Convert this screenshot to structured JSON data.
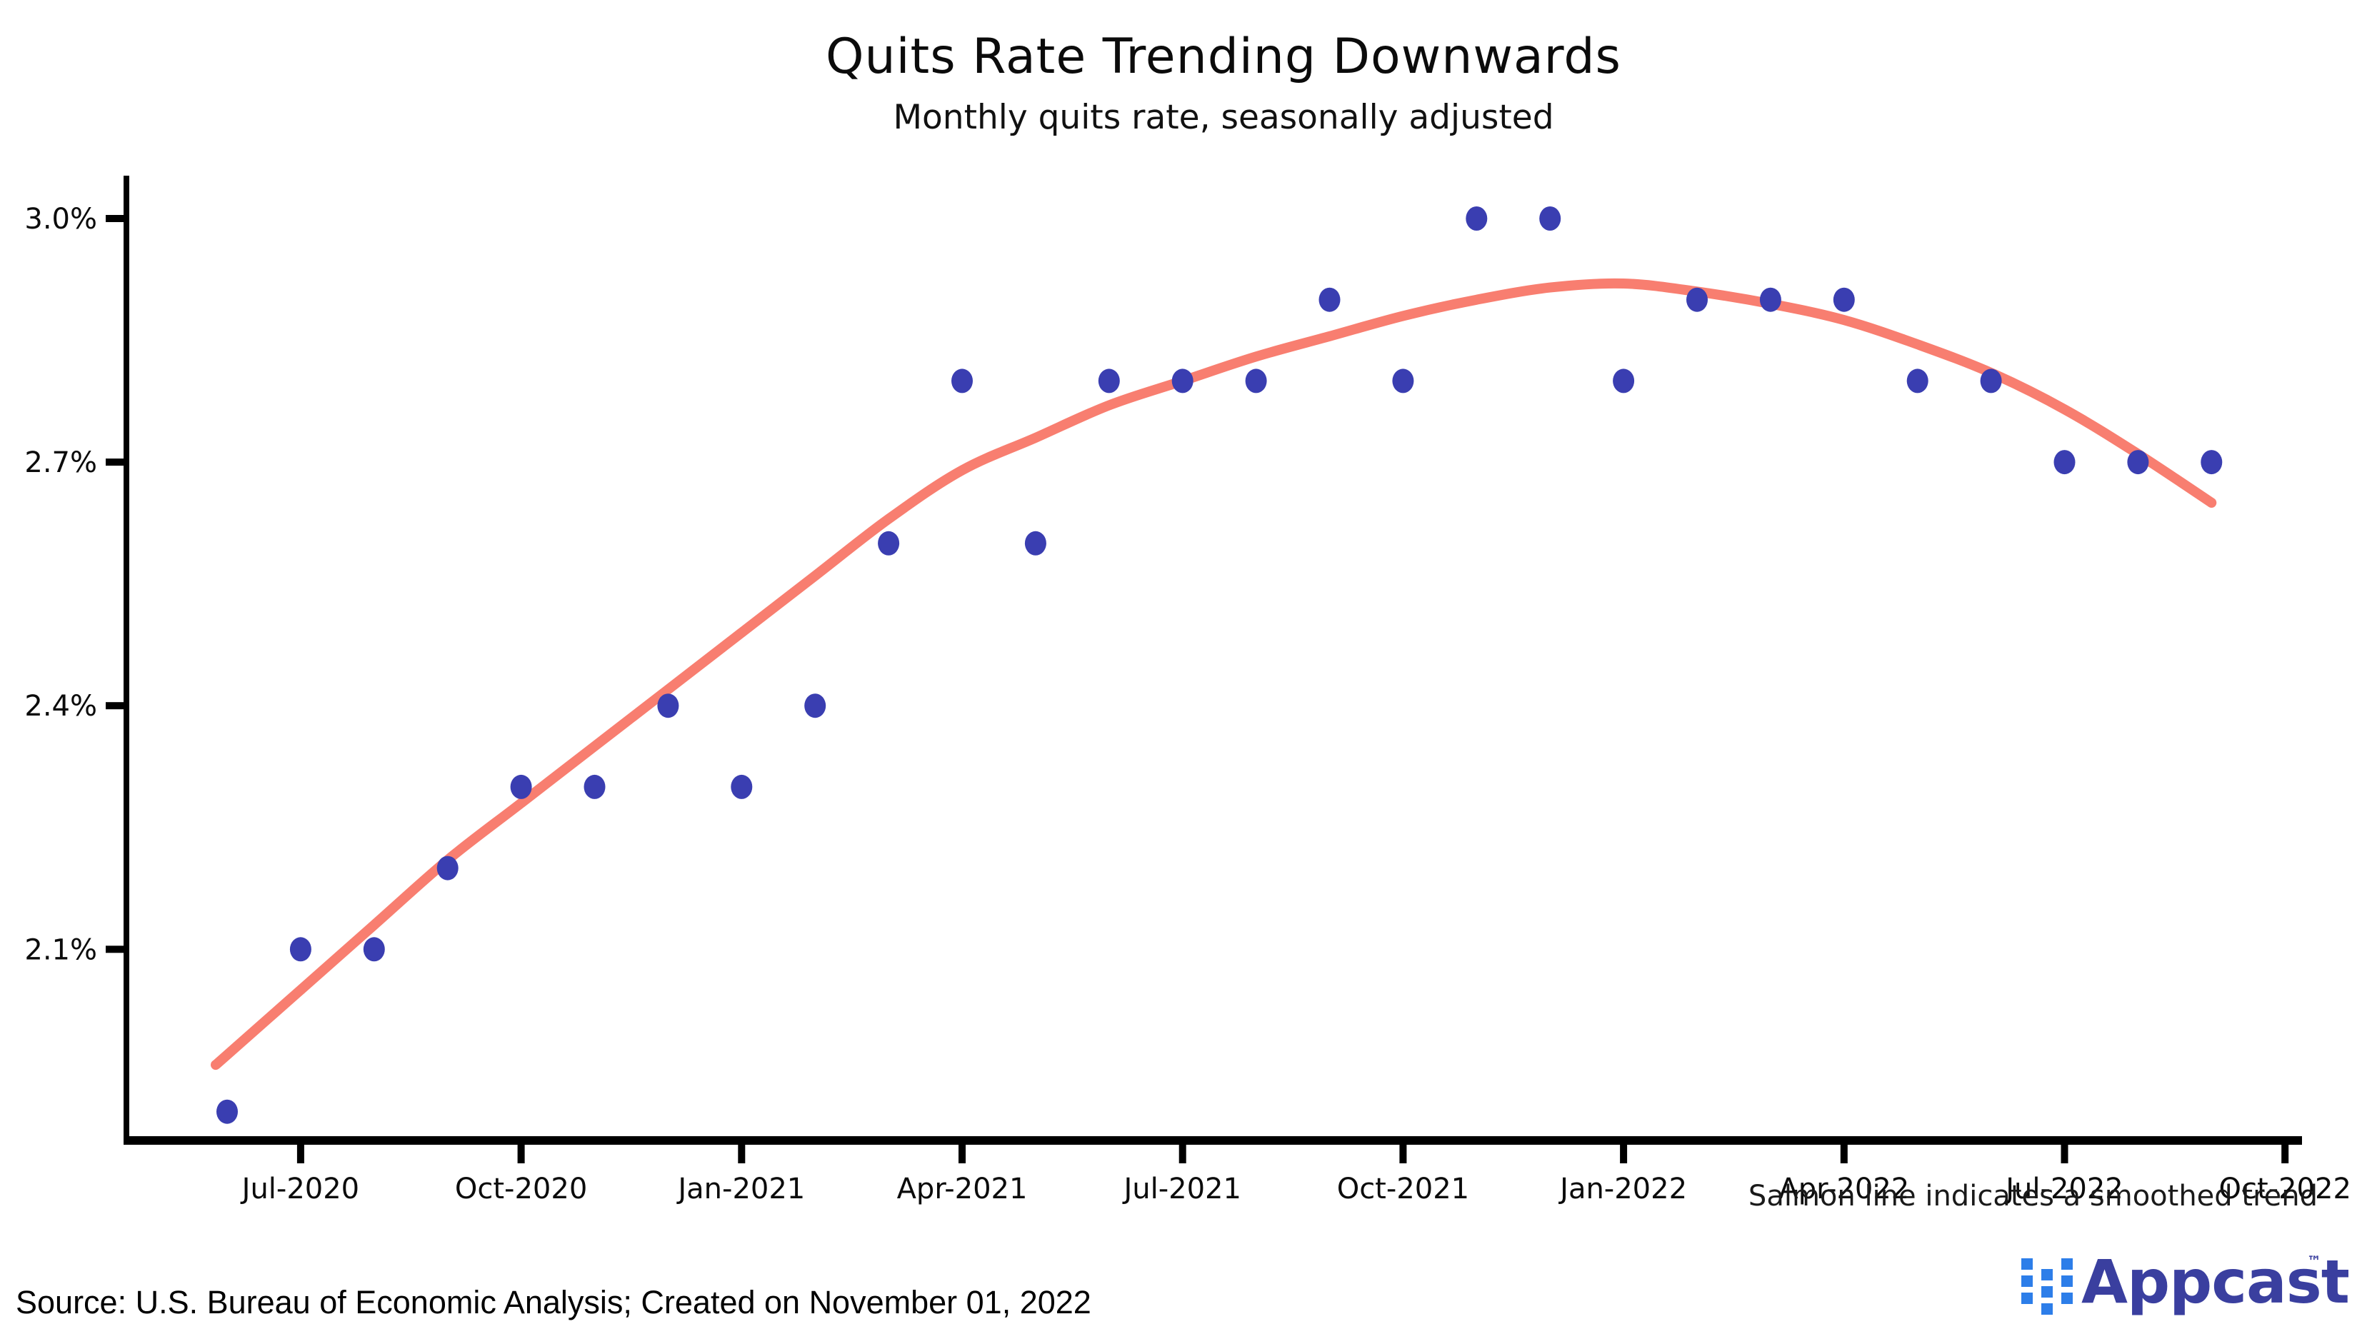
{
  "header": {
    "title": "Quits Rate Trending Downwards",
    "subtitle": "Monthly quits rate, seasonally adjusted"
  },
  "footnote": "Salmon line indicates a smoothed trend",
  "source_line": "Source: U.S. Bureau of Economic Analysis; Created on November 01, 2022",
  "logo": {
    "text": "Appcast",
    "tm": "™",
    "square_color": "#2d7ee9",
    "text_color": "#3a3f9f"
  },
  "chart_data": {
    "type": "scatter",
    "title": "Quits Rate Trending Downwards",
    "subtitle": "Monthly quits rate, seasonally adjusted",
    "xlabel": "",
    "ylabel": "",
    "grid": false,
    "legend_position": "none",
    "axis_color": "#000000",
    "ylim": [
      1.86,
      3.05
    ],
    "y_ticks": [
      3.0,
      2.7,
      2.4,
      2.1
    ],
    "y_tick_labels": [
      "3.0%",
      "2.7%",
      "2.4%",
      "2.1%"
    ],
    "x_tick_labels": [
      "Jul-2020",
      "Oct-2020",
      "Jan-2021",
      "Apr-2021",
      "Jul-2021",
      "Oct-2021",
      "Jan-2022",
      "Apr-2022",
      "Jul-2022",
      "Oct-2022"
    ],
    "x_tick_month_index": [
      1,
      4,
      7,
      10,
      13,
      16,
      19,
      22,
      25,
      28
    ],
    "x": [
      "Jun-2020",
      "Jul-2020",
      "Aug-2020",
      "Sep-2020",
      "Oct-2020",
      "Nov-2020",
      "Dec-2020",
      "Jan-2021",
      "Feb-2021",
      "Mar-2021",
      "Apr-2021",
      "May-2021",
      "Jun-2021",
      "Jul-2021",
      "Aug-2021",
      "Sep-2021",
      "Oct-2021",
      "Nov-2021",
      "Dec-2021",
      "Jan-2022",
      "Feb-2022",
      "Mar-2022",
      "Apr-2022",
      "May-2022",
      "Jun-2022",
      "Jul-2022",
      "Aug-2022",
      "Sep-2022"
    ],
    "series": [
      {
        "name": "Monthly quits rate (seasonally adjusted)",
        "render": "points",
        "color": "#3a3eb1",
        "values": [
          1.9,
          2.1,
          2.1,
          2.2,
          2.3,
          2.3,
          2.4,
          2.3,
          2.4,
          2.6,
          2.8,
          2.6,
          2.8,
          2.8,
          2.8,
          2.9,
          2.8,
          3.0,
          3.0,
          2.8,
          2.9,
          2.9,
          2.9,
          2.8,
          2.8,
          2.7,
          2.7,
          2.7
        ]
      },
      {
        "name": "Smoothed trend",
        "render": "line",
        "color": "#f87e70",
        "values": [
          1.97,
          2.05,
          2.13,
          2.21,
          2.28,
          2.35,
          2.42,
          2.49,
          2.56,
          2.63,
          2.69,
          2.73,
          2.77,
          2.8,
          2.83,
          2.855,
          2.88,
          2.9,
          2.915,
          2.92,
          2.91,
          2.895,
          2.875,
          2.845,
          2.81,
          2.765,
          2.71,
          2.65
        ]
      }
    ]
  }
}
